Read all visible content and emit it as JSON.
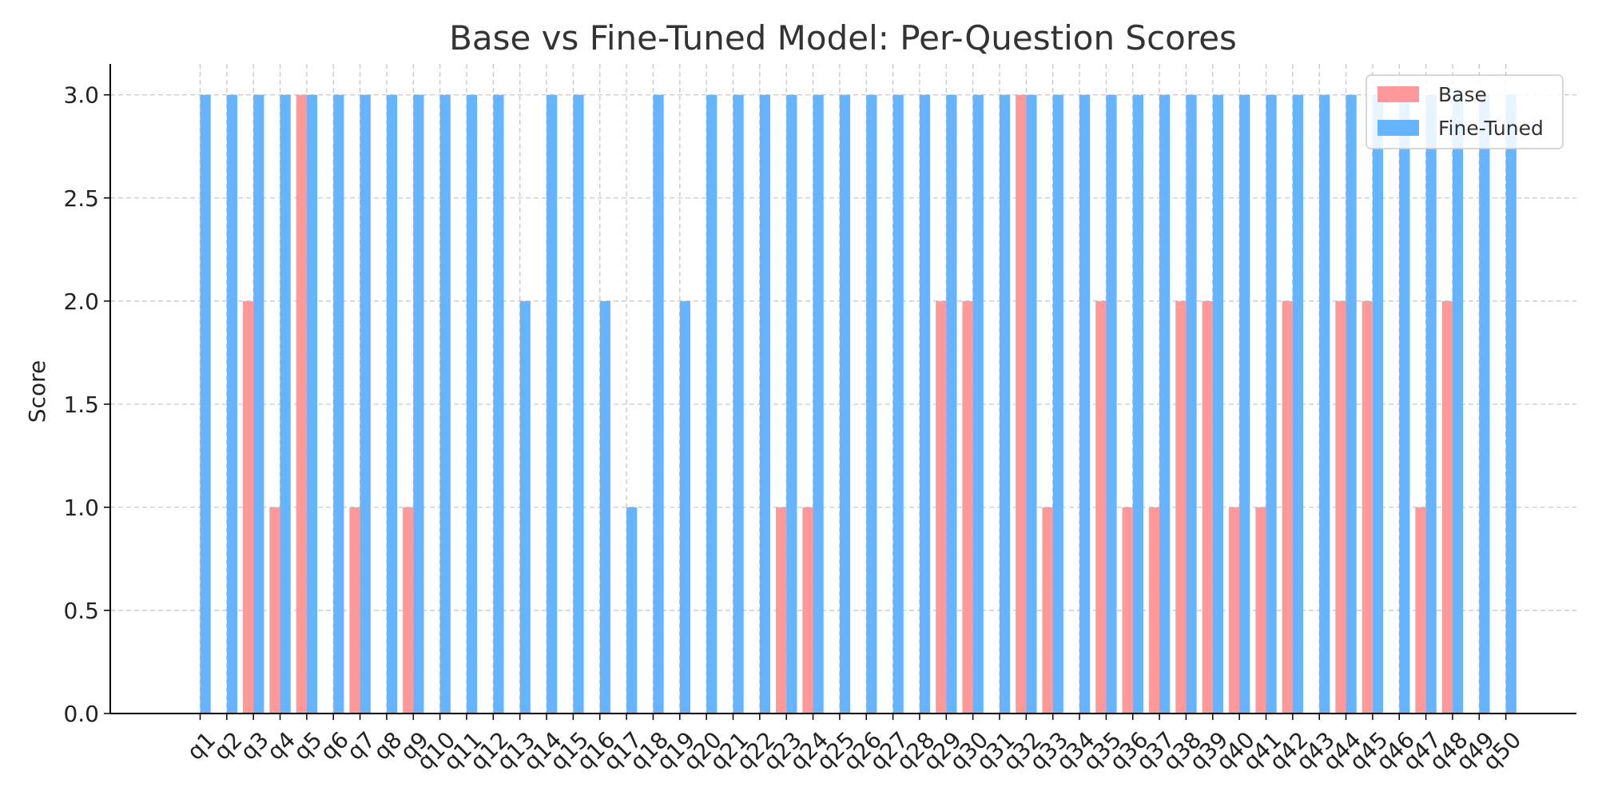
{
  "chart_data": {
    "type": "bar",
    "title": "Base vs Fine-Tuned Model: Per-Question Scores",
    "xlabel": "",
    "ylabel": "Score",
    "ylim": [
      0,
      3.15
    ],
    "yticks": [
      "0.0",
      "0.5",
      "1.0",
      "1.5",
      "2.0",
      "2.5",
      "3.0"
    ],
    "grid": true,
    "legend_position": "top-right",
    "categories": [
      "q1",
      "q2",
      "q3",
      "q4",
      "q5",
      "q6",
      "q7",
      "q8",
      "q9",
      "q10",
      "q11",
      "q12",
      "q13",
      "q14",
      "q15",
      "q16",
      "q17",
      "q18",
      "q19",
      "q20",
      "q21",
      "q22",
      "q23",
      "q24",
      "q25",
      "q26",
      "q27",
      "q28",
      "q29",
      "q30",
      "q31",
      "q32",
      "q33",
      "q34",
      "q35",
      "q36",
      "q37",
      "q38",
      "q39",
      "q40",
      "q41",
      "q42",
      "q43",
      "q44",
      "q45",
      "q46",
      "q47",
      "q48",
      "q49",
      "q50"
    ],
    "series": [
      {
        "name": "Base",
        "color": "#ff9999",
        "values": [
          0,
          0,
          2,
          1,
          3,
          0,
          1,
          0,
          1,
          0,
          0,
          0,
          0,
          0,
          0,
          0,
          0,
          0,
          0,
          0,
          0,
          0,
          1,
          1,
          0,
          0,
          0,
          0,
          2,
          2,
          0,
          3,
          1,
          0,
          2,
          1,
          1,
          2,
          2,
          1,
          1,
          2,
          0,
          2,
          2,
          0,
          1,
          2,
          0,
          0
        ]
      },
      {
        "name": "Fine-Tuned",
        "color": "#66b3ff",
        "values": [
          3,
          3,
          3,
          3,
          3,
          3,
          3,
          3,
          3,
          3,
          3,
          3,
          2,
          3,
          3,
          2,
          1,
          3,
          2,
          3,
          3,
          3,
          3,
          3,
          3,
          3,
          3,
          3,
          3,
          3,
          3,
          3,
          3,
          3,
          3,
          3,
          3,
          3,
          3,
          3,
          3,
          3,
          3,
          3,
          3,
          3,
          3,
          3,
          3,
          3
        ]
      }
    ]
  }
}
